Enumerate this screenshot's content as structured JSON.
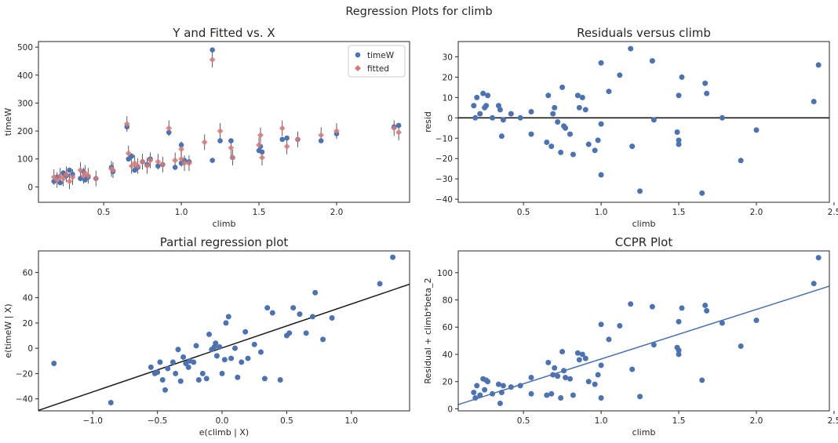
{
  "figure_title": "Regression Plots for climb",
  "colors": {
    "blue": "#4c72b0",
    "red": "#dd8452",
    "fitted": "#d37b7b",
    "line": "#1a1a1a"
  },
  "chart_data": [
    {
      "id": "yfit",
      "type": "scatter",
      "title": "Y and Fitted vs. X",
      "xlabel": "climb",
      "ylabel": "timeW",
      "xlim": [
        0.08,
        2.47
      ],
      "ylim": [
        -55,
        520
      ],
      "xticks": [
        0.5,
        1.0,
        1.5,
        2.0
      ],
      "xticklabels": [
        "0.5",
        "1.0",
        "1.5",
        "2.0"
      ],
      "yticks": [
        0,
        100,
        200,
        300,
        400,
        500
      ],
      "yticklabels": [
        "0",
        "100",
        "200",
        "300",
        "400",
        "500"
      ],
      "legend": [
        "timeW",
        "fitted"
      ],
      "legend_position": "top-right",
      "series": [
        {
          "name": "timeW",
          "x": [
            0.18,
            0.2,
            0.22,
            0.24,
            0.26,
            0.28,
            0.3,
            0.35,
            0.37,
            0.38,
            0.4,
            0.45,
            0.55,
            0.56,
            0.65,
            0.66,
            0.68,
            0.7,
            0.72,
            0.75,
            0.78,
            0.8,
            0.85,
            0.88,
            0.92,
            0.96,
            1.0,
            1.0,
            1.02,
            1.05,
            1.2,
            1.2,
            1.25,
            1.32,
            1.33,
            1.5,
            1.51,
            1.52,
            1.65,
            1.68,
            1.75,
            1.9,
            2.0,
            2.37,
            2.4
          ],
          "y": [
            20,
            35,
            15,
            50,
            40,
            60,
            45,
            30,
            55,
            25,
            35,
            30,
            70,
            55,
            215,
            100,
            110,
            60,
            70,
            90,
            80,
            100,
            75,
            80,
            195,
            70,
            150,
            85,
            95,
            90,
            490,
            95,
            165,
            165,
            105,
            130,
            145,
            125,
            170,
            175,
            170,
            165,
            190,
            215,
            220
          ]
        },
        {
          "name": "fitted",
          "x": [
            0.18,
            0.2,
            0.22,
            0.24,
            0.26,
            0.28,
            0.3,
            0.35,
            0.37,
            0.38,
            0.4,
            0.45,
            0.55,
            0.56,
            0.65,
            0.66,
            0.68,
            0.7,
            0.72,
            0.75,
            0.78,
            0.8,
            0.85,
            0.88,
            0.92,
            0.96,
            1.0,
            1.0,
            1.02,
            1.05,
            1.15,
            1.2,
            1.25,
            1.32,
            1.33,
            1.5,
            1.51,
            1.52,
            1.65,
            1.68,
            1.75,
            1.9,
            2.0,
            2.37,
            2.4
          ],
          "y": [
            35,
            25,
            40,
            30,
            45,
            20,
            35,
            60,
            40,
            50,
            40,
            30,
            65,
            60,
            225,
            120,
            75,
            85,
            75,
            90,
            75,
            95,
            90,
            80,
            210,
            95,
            135,
            100,
            85,
            85,
            160,
            455,
            200,
            140,
            105,
            150,
            185,
            105,
            210,
            145,
            170,
            185,
            200,
            210,
            195
          ]
        }
      ]
    },
    {
      "id": "resid",
      "type": "scatter",
      "title": "Residuals versus climb",
      "xlabel": "climb",
      "ylabel": "resid",
      "xlim": [
        0.08,
        2.47
      ],
      "ylim": [
        -41.5,
        37.5
      ],
      "xticks": [
        0.5,
        1.0,
        1.5,
        2.0,
        2.5
      ],
      "xticklabels": [
        "0.5",
        "1.0",
        "1.5",
        "2.0",
        "2.5"
      ],
      "yticks": [
        -40,
        -30,
        -20,
        -10,
        0,
        10,
        20,
        30
      ],
      "yticklabels": [
        "−40",
        "−30",
        "−20",
        "−10",
        "0",
        "10",
        "20",
        "30"
      ],
      "hline": 0,
      "series": [
        {
          "name": "",
          "x": [
            0.18,
            0.19,
            0.2,
            0.22,
            0.24,
            0.25,
            0.26,
            0.27,
            0.3,
            0.34,
            0.35,
            0.36,
            0.37,
            0.42,
            0.48,
            0.55,
            0.55,
            0.65,
            0.66,
            0.68,
            0.69,
            0.7,
            0.72,
            0.74,
            0.75,
            0.76,
            0.77,
            0.8,
            0.82,
            0.85,
            0.86,
            0.88,
            0.9,
            0.92,
            0.96,
            0.98,
            1.0,
            1.0,
            1.0,
            1.05,
            1.12,
            1.19,
            1.2,
            1.25,
            1.33,
            1.34,
            1.49,
            1.5,
            1.5,
            1.5,
            1.52,
            1.65,
            1.67,
            1.68,
            1.78,
            1.9,
            2.0,
            2.37,
            2.4
          ],
          "y": [
            6,
            0,
            10,
            2,
            12,
            5,
            6,
            11,
            0,
            6,
            4,
            -9,
            -1,
            2,
            0,
            3,
            -8,
            -12,
            11,
            -14,
            2,
            5,
            -2,
            -17,
            15,
            -4,
            -5,
            -8,
            -18,
            11,
            5,
            10,
            4,
            -13,
            -16,
            -11,
            -28,
            -3,
            27,
            13,
            21,
            34,
            -14,
            -36,
            28,
            -1,
            -7,
            11,
            -11,
            -13,
            20,
            -37,
            17,
            12,
            0,
            -21,
            -6,
            8,
            26
          ]
        }
      ]
    },
    {
      "id": "partreg",
      "type": "scatter",
      "title": "Partial regression plot",
      "xlabel": "e(climb | X)",
      "ylabel": "e(timeW | X)",
      "xlim": [
        -1.42,
        1.45
      ],
      "ylim": [
        -49.5,
        77
      ],
      "xticks": [
        -1.0,
        -0.5,
        0.0,
        0.5,
        1.0
      ],
      "xticklabels": [
        "−1.0",
        "−0.5",
        "0.0",
        "0.5",
        "1.0"
      ],
      "yticks": [
        -40,
        -20,
        0,
        20,
        40,
        60
      ],
      "yticklabels": [
        "−40",
        "−20",
        "0",
        "20",
        "40",
        "60"
      ],
      "fit_line": {
        "slope": 34.77,
        "intercept": 0.26
      },
      "series": [
        {
          "name": "",
          "x": [
            -1.3,
            -0.86,
            -0.55,
            -0.52,
            -0.5,
            -0.48,
            -0.46,
            -0.44,
            -0.42,
            -0.38,
            -0.36,
            -0.34,
            -0.32,
            -0.3,
            -0.28,
            -0.26,
            -0.25,
            -0.22,
            -0.2,
            -0.18,
            -0.15,
            -0.12,
            -0.1,
            -0.08,
            -0.06,
            -0.05,
            -0.04,
            -0.02,
            0.0,
            0.02,
            0.03,
            0.05,
            0.07,
            0.1,
            0.12,
            0.15,
            0.18,
            0.2,
            0.25,
            0.3,
            0.33,
            0.35,
            0.39,
            0.45,
            0.5,
            0.52,
            0.55,
            0.6,
            0.65,
            0.7,
            0.72,
            0.78,
            0.85,
            1.22,
            1.32
          ],
          "y": [
            -12,
            -43,
            -15,
            -20,
            -19,
            -11,
            -25,
            -33,
            -16,
            -11,
            -20,
            -1,
            -26,
            -7,
            -12,
            -15,
            -10,
            -11,
            2,
            -25,
            -20,
            -24,
            11,
            -1,
            1,
            4,
            -6,
            1,
            -20,
            -9,
            20,
            25,
            -8,
            0,
            -23,
            -11,
            13,
            -8,
            3,
            -3,
            -24,
            32,
            28,
            -25,
            10,
            12,
            32,
            27,
            12,
            25,
            44,
            7,
            24,
            51,
            72
          ]
        }
      ]
    },
    {
      "id": "ccpr",
      "type": "scatter",
      "title": "CCPR Plot",
      "xlabel": "climb",
      "ylabel": "Residual + climb*beta_2",
      "xlim": [
        0.08,
        2.47
      ],
      "ylim": [
        -1.5,
        116
      ],
      "xticks": [
        0.5,
        1.0,
        1.5,
        2.0,
        2.5
      ],
      "xticklabels": [
        "0.5",
        "1.0",
        "1.5",
        "2.0",
        "2.5"
      ],
      "yticks": [
        0,
        20,
        40,
        60,
        80,
        100
      ],
      "yticklabels": [
        "0",
        "20",
        "40",
        "60",
        "80",
        "100"
      ],
      "fit_line": {
        "slope": 36.4,
        "intercept": 0.2
      },
      "series": [
        {
          "name": "",
          "x": [
            0.18,
            0.19,
            0.2,
            0.22,
            0.24,
            0.25,
            0.26,
            0.27,
            0.3,
            0.34,
            0.35,
            0.36,
            0.37,
            0.42,
            0.48,
            0.55,
            0.55,
            0.65,
            0.66,
            0.68,
            0.69,
            0.7,
            0.72,
            0.74,
            0.75,
            0.76,
            0.77,
            0.8,
            0.82,
            0.85,
            0.86,
            0.88,
            0.9,
            0.92,
            0.96,
            0.98,
            1.0,
            1.0,
            1.0,
            1.05,
            1.12,
            1.19,
            1.2,
            1.25,
            1.33,
            1.34,
            1.49,
            1.5,
            1.5,
            1.5,
            1.52,
            1.65,
            1.67,
            1.68,
            1.78,
            1.9,
            2.0,
            2.37,
            2.4
          ],
          "y": [
            12,
            8,
            17,
            10,
            22,
            14,
            21,
            20,
            11,
            18,
            4,
            12,
            17,
            16,
            17,
            23,
            11,
            10,
            34,
            11,
            25,
            30,
            24,
            8,
            42,
            28,
            23,
            22,
            10,
            41,
            36,
            40,
            37,
            20,
            18,
            25,
            8,
            32,
            62,
            51,
            61,
            77,
            29,
            9,
            75,
            47,
            45,
            64,
            43,
            40,
            74,
            21,
            76,
            72,
            63,
            46,
            65,
            92,
            111
          ]
        }
      ]
    }
  ]
}
